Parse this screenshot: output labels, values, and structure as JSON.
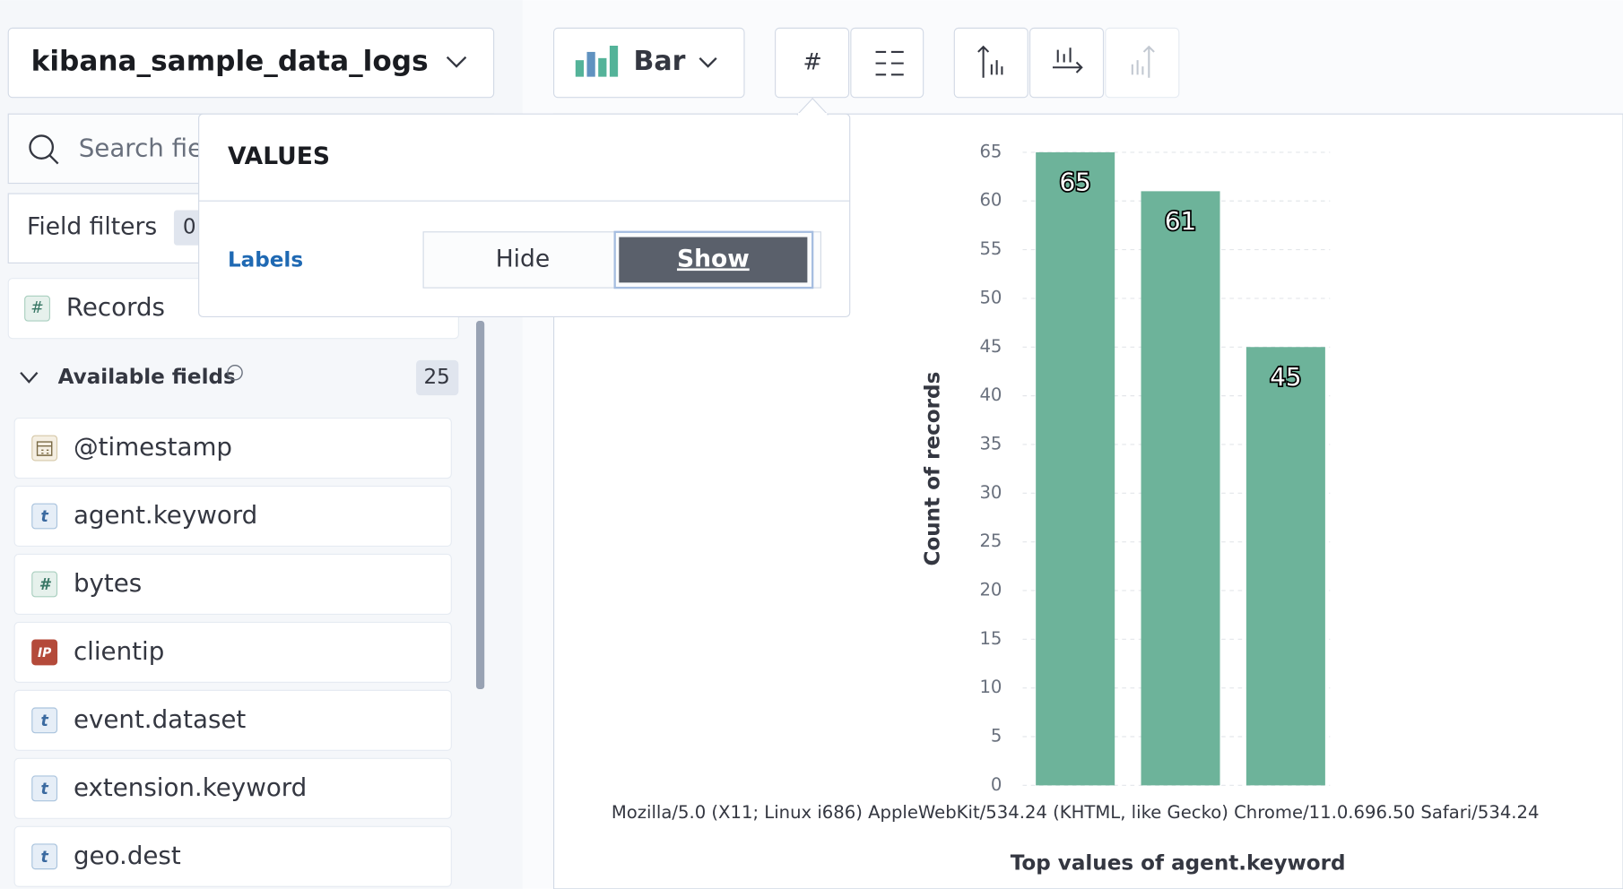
{
  "index_pattern": "kibana_sample_data_logs",
  "search_placeholder": "Search field names",
  "field_filters": {
    "label": "Field filters",
    "count": "0"
  },
  "records": {
    "icon": "#",
    "label": "Records"
  },
  "available_fields": {
    "label": "Available fields",
    "count": "25"
  },
  "fields": [
    {
      "name": "@timestamp"
    },
    {
      "icon": "t",
      "name": "agent.keyword"
    },
    {
      "icon": "#",
      "name": "bytes"
    },
    {
      "icon": "IP",
      "name": "clientip"
    },
    {
      "icon": "t",
      "name": "event.dataset"
    },
    {
      "icon": "t",
      "name": "extension.keyword"
    },
    {
      "icon": "t",
      "name": "geo.dest"
    }
  ],
  "toolbar": {
    "chart_type": "Bar",
    "values_button": "#"
  },
  "popover": {
    "title": "VALUES",
    "setting": "Labels",
    "options": [
      "Hide",
      "Show"
    ],
    "selected": 1
  },
  "chart_data": {
    "type": "bar",
    "categories": [
      "Mozilla/5.0 (X11; Linux i686) AppleWebKit/534.24 (KHTML, like Gecko) Chrome/11.0.696.50 Safari/534.24",
      null,
      null
    ],
    "values": [
      65,
      61,
      45
    ],
    "color": "#6db39a",
    "ylim": [
      0,
      65
    ],
    "yticks": [
      0,
      5,
      10,
      15,
      20,
      25,
      30,
      35,
      40,
      45,
      50,
      55,
      60,
      65
    ],
    "y_label": "Count of records",
    "x_label": "Top values of agent.keyword",
    "grid": true,
    "value_labels_shown": true
  }
}
